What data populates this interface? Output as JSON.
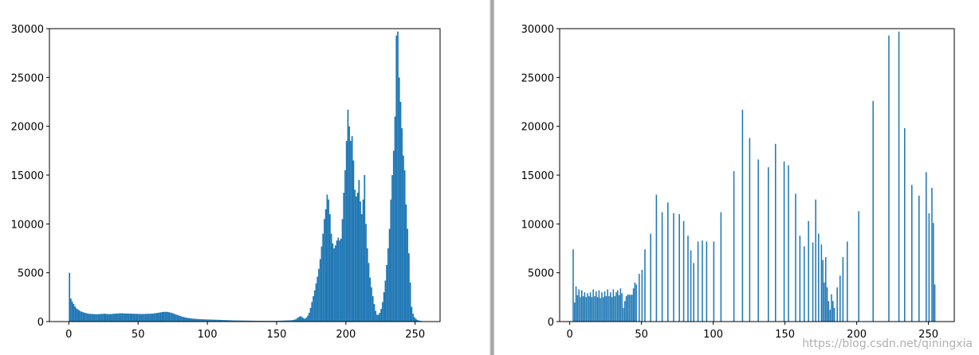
{
  "watermark": "https://blog.csdn.net/qiningxia",
  "chart_data": [
    {
      "type": "bar",
      "title": "",
      "xlabel": "",
      "ylabel": "",
      "xlim": [
        -14,
        268
      ],
      "ylim": [
        0,
        30000
      ],
      "xticks": [
        "0",
        "50",
        "100",
        "150",
        "200",
        "250"
      ],
      "yticks": [
        "0",
        "5000",
        "10000",
        "15000",
        "20000",
        "25000",
        "30000"
      ],
      "bar_color": "#1f77b4",
      "bin_width": 1,
      "x_start": 0,
      "values": [
        5000,
        2350,
        2050,
        1800,
        1550,
        1350,
        1250,
        1150,
        1050,
        1000,
        950,
        900,
        860,
        830,
        800,
        790,
        780,
        770,
        760,
        755,
        750,
        760,
        770,
        780,
        790,
        800,
        790,
        780,
        770,
        760,
        770,
        790,
        800,
        810,
        820,
        830,
        840,
        850,
        850,
        840,
        830,
        830,
        820,
        820,
        810,
        810,
        800,
        800,
        790,
        790,
        780,
        780,
        780,
        780,
        780,
        790,
        790,
        800,
        800,
        810,
        820,
        840,
        860,
        880,
        900,
        920,
        950,
        970,
        990,
        1000,
        1000,
        980,
        950,
        920,
        880,
        830,
        770,
        720,
        670,
        620,
        570,
        520,
        480,
        440,
        410,
        380,
        360,
        340,
        320,
        300,
        290,
        280,
        270,
        260,
        250,
        240,
        235,
        230,
        225,
        220,
        215,
        210,
        205,
        200,
        195,
        190,
        185,
        180,
        175,
        170,
        165,
        160,
        155,
        150,
        145,
        140,
        135,
        130,
        125,
        120,
        118,
        115,
        112,
        110,
        108,
        105,
        102,
        100,
        98,
        96,
        94,
        92,
        90,
        88,
        86,
        84,
        82,
        80,
        78,
        76,
        75,
        75,
        75,
        75,
        75,
        75,
        75,
        75,
        75,
        75,
        80,
        85,
        90,
        95,
        100,
        105,
        110,
        115,
        120,
        125,
        130,
        150,
        180,
        220,
        300,
        420,
        500,
        550,
        450,
        350,
        300,
        400,
        600,
        900,
        1400,
        2000,
        2600,
        3200,
        3900,
        4600,
        5400,
        6400,
        7700,
        9000,
        10500,
        11500,
        13000,
        12500,
        11000,
        9000,
        8000,
        7500,
        7800,
        8300,
        8600,
        8300,
        8500,
        10500,
        13200,
        15500,
        18500,
        21700,
        20000,
        18500,
        19000,
        16500,
        13500,
        12800,
        13200,
        14500,
        12300,
        11000,
        12500,
        15000,
        10000,
        7500,
        6000,
        4500,
        3500,
        2600,
        1800,
        1100,
        700,
        700,
        900,
        1300,
        2000,
        3000,
        4200,
        5800,
        7500,
        9500,
        12500,
        15000,
        17500,
        21000,
        29300,
        29700,
        25000,
        22500,
        19800,
        17000,
        15500,
        12000,
        9500,
        7000,
        4000,
        1500,
        800,
        450,
        300,
        180,
        120,
        80,
        60,
        40
      ]
    },
    {
      "type": "bar",
      "title": "",
      "xlabel": "",
      "ylabel": "",
      "xlim": [
        -7,
        268
      ],
      "ylim": [
        0,
        30000
      ],
      "xticks": [
        "0",
        "50",
        "100",
        "150",
        "200",
        "250"
      ],
      "yticks": [
        "0",
        "5000",
        "10000",
        "15000",
        "20000",
        "25000",
        "30000"
      ],
      "bar_color": "#1f77b4",
      "bar_width": 0.85,
      "points": [
        [
          2,
          7400
        ],
        [
          3,
          1950
        ],
        [
          4,
          3600
        ],
        [
          5,
          2700
        ],
        [
          6,
          3300
        ],
        [
          7,
          2500
        ],
        [
          8,
          3200
        ],
        [
          9,
          2600
        ],
        [
          10,
          3000
        ],
        [
          11,
          2500
        ],
        [
          12,
          2900
        ],
        [
          13,
          2600
        ],
        [
          14,
          3000
        ],
        [
          15,
          2500
        ],
        [
          16,
          3300
        ],
        [
          17,
          2600
        ],
        [
          18,
          3100
        ],
        [
          19,
          2500
        ],
        [
          20,
          3200
        ],
        [
          21,
          2400
        ],
        [
          22,
          3000
        ],
        [
          23,
          2500
        ],
        [
          24,
          3100
        ],
        [
          25,
          2600
        ],
        [
          26,
          3300
        ],
        [
          27,
          2600
        ],
        [
          28,
          3000
        ],
        [
          29,
          2500
        ],
        [
          30,
          3300
        ],
        [
          31,
          2600
        ],
        [
          32,
          3000
        ],
        [
          33,
          3200
        ],
        [
          34,
          2700
        ],
        [
          35,
          3400
        ],
        [
          36,
          2900
        ],
        [
          37,
          1400
        ],
        [
          38,
          2100
        ],
        [
          39,
          2600
        ],
        [
          40,
          2750
        ],
        [
          41,
          2750
        ],
        [
          42,
          2750
        ],
        [
          43,
          2750
        ],
        [
          44,
          3400
        ],
        [
          45,
          4000
        ],
        [
          46,
          3800
        ],
        [
          48,
          4900
        ],
        [
          50,
          5300
        ],
        [
          52,
          7400
        ],
        [
          56,
          9000
        ],
        [
          60,
          13000
        ],
        [
          64,
          11200
        ],
        [
          68,
          12200
        ],
        [
          72,
          11100
        ],
        [
          76,
          11000
        ],
        [
          79,
          10300
        ],
        [
          82,
          8800
        ],
        [
          84,
          7300
        ],
        [
          86,
          6000
        ],
        [
          89,
          8200
        ],
        [
          92,
          8300
        ],
        [
          95,
          8200
        ],
        [
          100,
          8200
        ],
        [
          105,
          11200
        ],
        [
          114,
          15400
        ],
        [
          120,
          21700
        ],
        [
          125,
          18800
        ],
        [
          131,
          16600
        ],
        [
          138,
          15800
        ],
        [
          143,
          18200
        ],
        [
          149,
          16400
        ],
        [
          152,
          16000
        ],
        [
          157,
          13100
        ],
        [
          160,
          8800
        ],
        [
          163,
          7700
        ],
        [
          166,
          10300
        ],
        [
          169,
          8100
        ],
        [
          171,
          12500
        ],
        [
          173,
          9000
        ],
        [
          175,
          7900
        ],
        [
          176,
          6300
        ],
        [
          177,
          4000
        ],
        [
          178,
          6600
        ],
        [
          179,
          3500
        ],
        [
          180,
          2100
        ],
        [
          181,
          1200
        ],
        [
          182,
          2800
        ],
        [
          183,
          2100
        ],
        [
          184,
          1400
        ],
        [
          186,
          3500
        ],
        [
          188,
          4700
        ],
        [
          190,
          6600
        ],
        [
          193,
          8200
        ],
        [
          201,
          11300
        ],
        [
          211,
          22600
        ],
        [
          222,
          29300
        ],
        [
          229,
          29700
        ],
        [
          233,
          19800
        ],
        [
          238,
          14000
        ],
        [
          243,
          12900
        ],
        [
          248,
          15300
        ],
        [
          250,
          11100
        ],
        [
          252,
          13700
        ],
        [
          253,
          10100
        ],
        [
          254,
          3800
        ]
      ]
    }
  ]
}
